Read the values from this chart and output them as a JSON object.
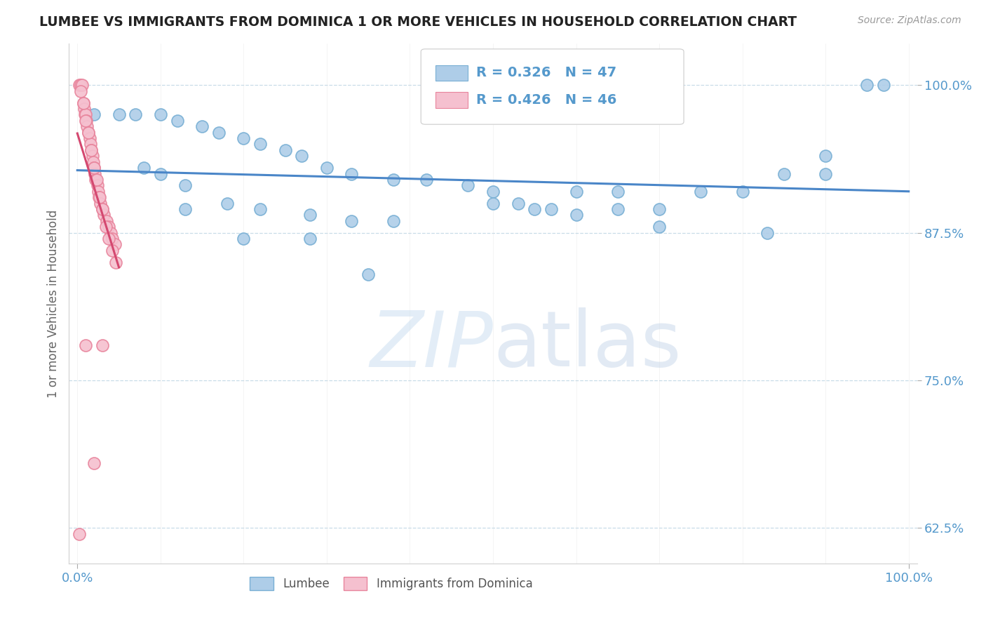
{
  "title": "LUMBEE VS IMMIGRANTS FROM DOMINICA 1 OR MORE VEHICLES IN HOUSEHOLD CORRELATION CHART",
  "source": "Source: ZipAtlas.com",
  "ylabel": "1 or more Vehicles in Household",
  "xlim": [
    -0.01,
    1.01
  ],
  "ylim": [
    0.595,
    1.035
  ],
  "yticks": [
    0.625,
    0.75,
    0.875,
    1.0
  ],
  "ytick_labels": [
    "62.5%",
    "75.0%",
    "87.5%",
    "100.0%"
  ],
  "xtick_labels": [
    "0.0%",
    "100.0%"
  ],
  "lumbee_color": "#aecde8",
  "lumbee_edge_color": "#78afd4",
  "dominica_color": "#f5c0cf",
  "dominica_edge_color": "#e8849c",
  "lumbee_line_color": "#4a86c8",
  "dominica_line_color": "#d44870",
  "R_lumbee": 0.326,
  "N_lumbee": 47,
  "R_dominica": 0.426,
  "N_dominica": 46,
  "watermark_zip": "ZIP",
  "watermark_atlas": "atlas",
  "legend_labels": [
    "Lumbee",
    "Immigrants from Dominica"
  ],
  "lumbee_x": [
    0.02,
    0.05,
    0.07,
    0.1,
    0.12,
    0.15,
    0.17,
    0.2,
    0.22,
    0.25,
    0.27,
    0.3,
    0.33,
    0.38,
    0.42,
    0.47,
    0.5,
    0.53,
    0.57,
    0.6,
    0.65,
    0.7,
    0.75,
    0.8,
    0.85,
    0.9,
    0.95,
    0.08,
    0.1,
    0.13,
    0.18,
    0.22,
    0.28,
    0.33,
    0.38,
    0.5,
    0.55,
    0.6,
    0.65,
    0.7,
    0.83,
    0.9,
    0.97,
    0.13,
    0.2,
    0.28,
    0.35
  ],
  "lumbee_y": [
    0.975,
    0.975,
    0.975,
    0.975,
    0.97,
    0.965,
    0.96,
    0.955,
    0.95,
    0.945,
    0.94,
    0.93,
    0.925,
    0.92,
    0.92,
    0.915,
    0.91,
    0.9,
    0.895,
    0.89,
    0.895,
    0.895,
    0.91,
    0.91,
    0.925,
    0.925,
    1.0,
    0.93,
    0.925,
    0.915,
    0.9,
    0.895,
    0.89,
    0.885,
    0.885,
    0.9,
    0.895,
    0.91,
    0.91,
    0.88,
    0.875,
    0.94,
    1.0,
    0.895,
    0.87,
    0.87,
    0.84
  ],
  "dominica_x": [
    0.002,
    0.004,
    0.006,
    0.007,
    0.008,
    0.009,
    0.01,
    0.011,
    0.012,
    0.013,
    0.015,
    0.016,
    0.017,
    0.018,
    0.019,
    0.02,
    0.021,
    0.022,
    0.024,
    0.025,
    0.026,
    0.028,
    0.03,
    0.032,
    0.035,
    0.038,
    0.04,
    0.042,
    0.045,
    0.004,
    0.007,
    0.01,
    0.013,
    0.017,
    0.02,
    0.023,
    0.027,
    0.03,
    0.034,
    0.038,
    0.042,
    0.046,
    0.01,
    0.02,
    0.03,
    0.002
  ],
  "dominica_y": [
    1.0,
    1.0,
    1.0,
    0.985,
    0.98,
    0.975,
    0.975,
    0.97,
    0.965,
    0.96,
    0.955,
    0.95,
    0.945,
    0.94,
    0.935,
    0.93,
    0.925,
    0.92,
    0.915,
    0.91,
    0.905,
    0.9,
    0.895,
    0.89,
    0.885,
    0.88,
    0.875,
    0.87,
    0.865,
    0.995,
    0.985,
    0.97,
    0.96,
    0.945,
    0.93,
    0.92,
    0.905,
    0.895,
    0.88,
    0.87,
    0.86,
    0.85,
    0.78,
    0.68,
    0.78,
    0.62
  ]
}
